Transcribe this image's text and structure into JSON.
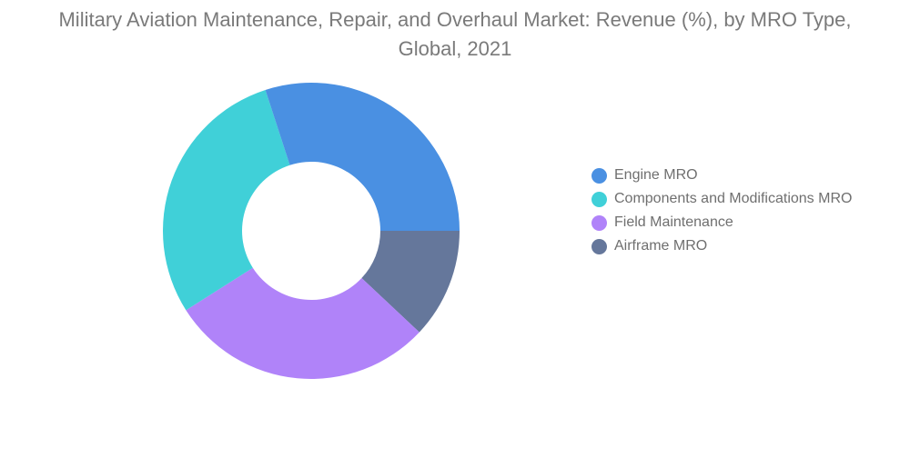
{
  "chart_data": {
    "type": "pie",
    "variant": "donut",
    "title": "Military Aviation Maintenance, Repair, and Overhaul Market: Revenue (%), by MRO Type, Global, 2021",
    "categories": [
      "Engine MRO",
      "Components and Modifications MRO",
      "Field Maintenance",
      "Airframe MRO"
    ],
    "values": [
      30,
      29,
      29,
      12
    ],
    "colors": [
      "#4a90e2",
      "#40d0d8",
      "#b083f9",
      "#65779b"
    ],
    "legend_position": "right"
  }
}
